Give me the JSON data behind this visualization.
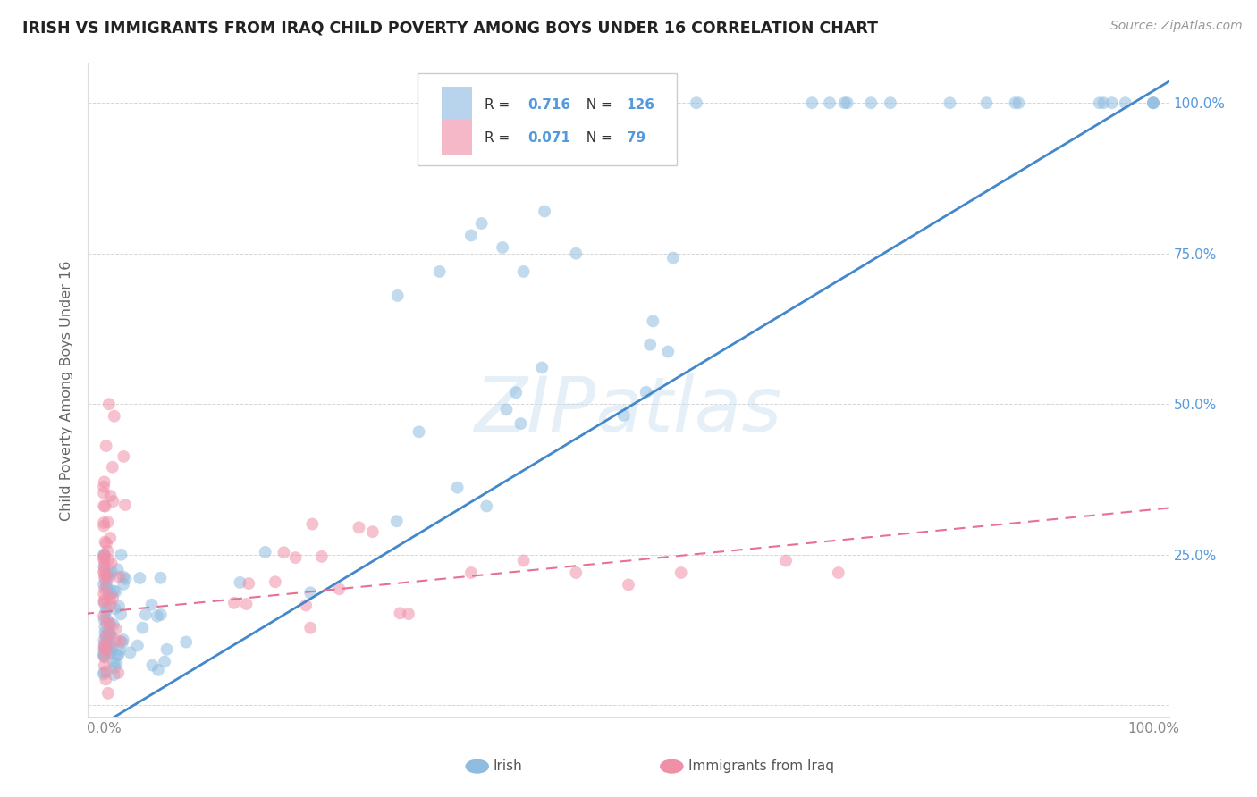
{
  "title": "IRISH VS IMMIGRANTS FROM IRAQ CHILD POVERTY AMONG BOYS UNDER 16 CORRELATION CHART",
  "source": "Source: ZipAtlas.com",
  "ylabel": "Child Poverty Among Boys Under 16",
  "watermark": "ZIPatlas",
  "bg_color": "#ffffff",
  "grid_color": "#cccccc",
  "irish_scatter_color": "#90bce0",
  "iraq_scatter_color": "#f090a8",
  "irish_line_color": "#4488cc",
  "iraq_line_color": "#e87090",
  "irish_R": 0.716,
  "irish_N": 126,
  "iraq_R": 0.071,
  "iraq_N": 79,
  "irish_legend_color": "#b8d4ec",
  "iraq_legend_color": "#f4b8c8",
  "label_color": "#5599dd",
  "tick_color": "#888888",
  "axis_label_color": "#666666",
  "bottom_legend_irish": "Irish",
  "bottom_legend_iraq": "Immigrants from Iraq"
}
